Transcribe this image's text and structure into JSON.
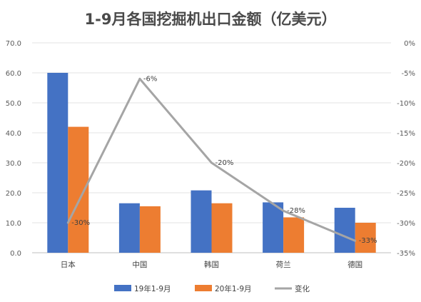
{
  "chart_data": {
    "type": "bar",
    "title": "1-9月各国挖掘机出口金额（亿美元）",
    "categories": [
      "日本",
      "中国",
      "韩国",
      "荷兰",
      "德国"
    ],
    "series": [
      {
        "name": "19年1-9月",
        "type": "bar",
        "axis": "left",
        "color": "#4472c4",
        "values": [
          60.0,
          16.5,
          20.8,
          16.8,
          15.0
        ]
      },
      {
        "name": "20年1-9月",
        "type": "bar",
        "axis": "left",
        "color": "#ed7d31",
        "values": [
          42.0,
          15.5,
          16.5,
          11.8,
          10.0
        ]
      },
      {
        "name": "变化",
        "type": "line",
        "axis": "right",
        "color": "#a5a5a5",
        "values": [
          -30,
          -6,
          -20,
          -28,
          -33
        ]
      }
    ],
    "data_labels": [
      "-30%",
      "-6%",
      "-20%",
      "-28%",
      "-33%"
    ],
    "y_left": {
      "ticks": [
        "70.0",
        "60.0",
        "50.0",
        "40.0",
        "30.0",
        "20.0",
        "10.0",
        "0.0"
      ],
      "ylim": [
        0,
        70
      ]
    },
    "y_right": {
      "ticks": [
        "0%",
        "-5%",
        "-10%",
        "-15%",
        "-20%",
        "-25%",
        "-30%",
        "-35%"
      ],
      "ylim": [
        -35,
        0
      ]
    },
    "grid": true,
    "legend_position": "bottom"
  }
}
